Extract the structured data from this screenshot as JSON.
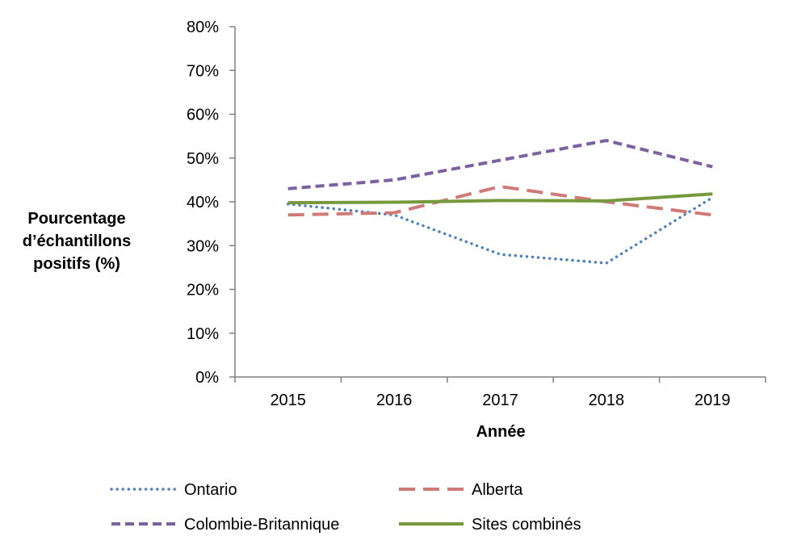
{
  "chart_data": {
    "type": "line",
    "xlabel": "Année",
    "ylabel": [
      "Pourcentage",
      "d’échantillons",
      "positifs (%)"
    ],
    "categories": [
      "2015",
      "2016",
      "2017",
      "2018",
      "2019"
    ],
    "ylim": [
      0,
      80
    ],
    "y_ticks": [
      "0%",
      "10%",
      "20%",
      "30%",
      "40%",
      "50%",
      "60%",
      "70%",
      "80%"
    ],
    "grid": false,
    "legend_position": "bottom",
    "series": [
      {
        "name": "Ontario",
        "values": [
          39.5,
          37,
          28,
          26,
          41
        ],
        "color": "#4f81bd",
        "style": "dotted"
      },
      {
        "name": "Alberta",
        "values": [
          37,
          37.5,
          43.5,
          40,
          37
        ],
        "color": "#d07a78",
        "style": "dashed"
      },
      {
        "name": "Colombie-Britannique",
        "values": [
          43,
          45,
          49.5,
          54,
          48
        ],
        "color": "#7d60a0",
        "style": "short-dashed"
      },
      {
        "name": "Sites combinés",
        "values": [
          39.8,
          39.9,
          40.3,
          40.2,
          41.8
        ],
        "color": "#77993d",
        "style": "solid"
      }
    ]
  }
}
